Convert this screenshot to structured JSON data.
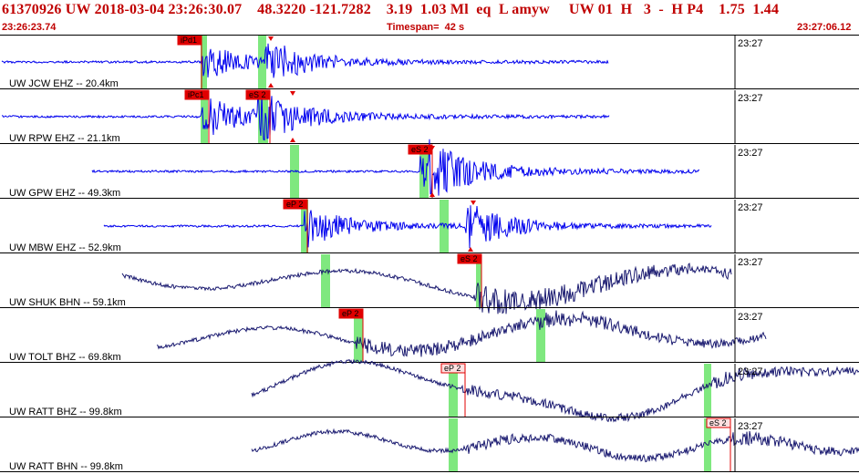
{
  "header": {
    "title": "61370926 UW 2018-03-04 23:26:30.07    48.3220 -121.7282    3.19  1.03 Ml  eq  L amyw     UW 01  H   3  -  H P4    1.75  1.44",
    "start_time": "23:26:23.74",
    "timespan": "Timespan=  42 s",
    "end_time": "23:27:06.12"
  },
  "colors": {
    "title": "#c00000",
    "trace_short": "#0000ee",
    "trace_long": "#1a1a70",
    "pick_box": "#e00000",
    "green_marker": "#7fe87f",
    "separator": "#000000"
  },
  "time_marker_label": "23:27",
  "channels": [
    {
      "label": "UW JCW EHZ -- 20.4km",
      "color": "blue",
      "picks": [
        {
          "text": "iPd1",
          "style": "filled"
        }
      ]
    },
    {
      "label": "UW RPW EHZ -- 21.1km",
      "color": "blue",
      "picks": [
        {
          "text": "iPc1",
          "style": "filled"
        },
        {
          "text": "eS 2",
          "style": "filled"
        }
      ]
    },
    {
      "label": "UW GPW EHZ -- 49.3km",
      "color": "blue",
      "picks": [
        {
          "text": "eS 2",
          "style": "filled"
        }
      ]
    },
    {
      "label": "UW MBW EHZ -- 52.9km",
      "color": "blue",
      "picks": [
        {
          "text": "eP 2",
          "style": "filled"
        }
      ]
    },
    {
      "label": "UW SHUK BHN -- 59.1km",
      "color": "dark",
      "picks": [
        {
          "text": "eS 2",
          "style": "filled"
        }
      ]
    },
    {
      "label": "UW TOLT BHZ -- 69.8km",
      "color": "dark",
      "picks": [
        {
          "text": "eP 2",
          "style": "filled"
        }
      ]
    },
    {
      "label": "UW RATT BHZ -- 99.8km",
      "color": "dark",
      "picks": [
        {
          "text": "eP 2",
          "style": "outline"
        }
      ]
    },
    {
      "label": "UW RATT BHN -- 99.8km",
      "color": "dark",
      "picks": [
        {
          "text": "eS 2",
          "style": "outline"
        }
      ]
    }
  ]
}
